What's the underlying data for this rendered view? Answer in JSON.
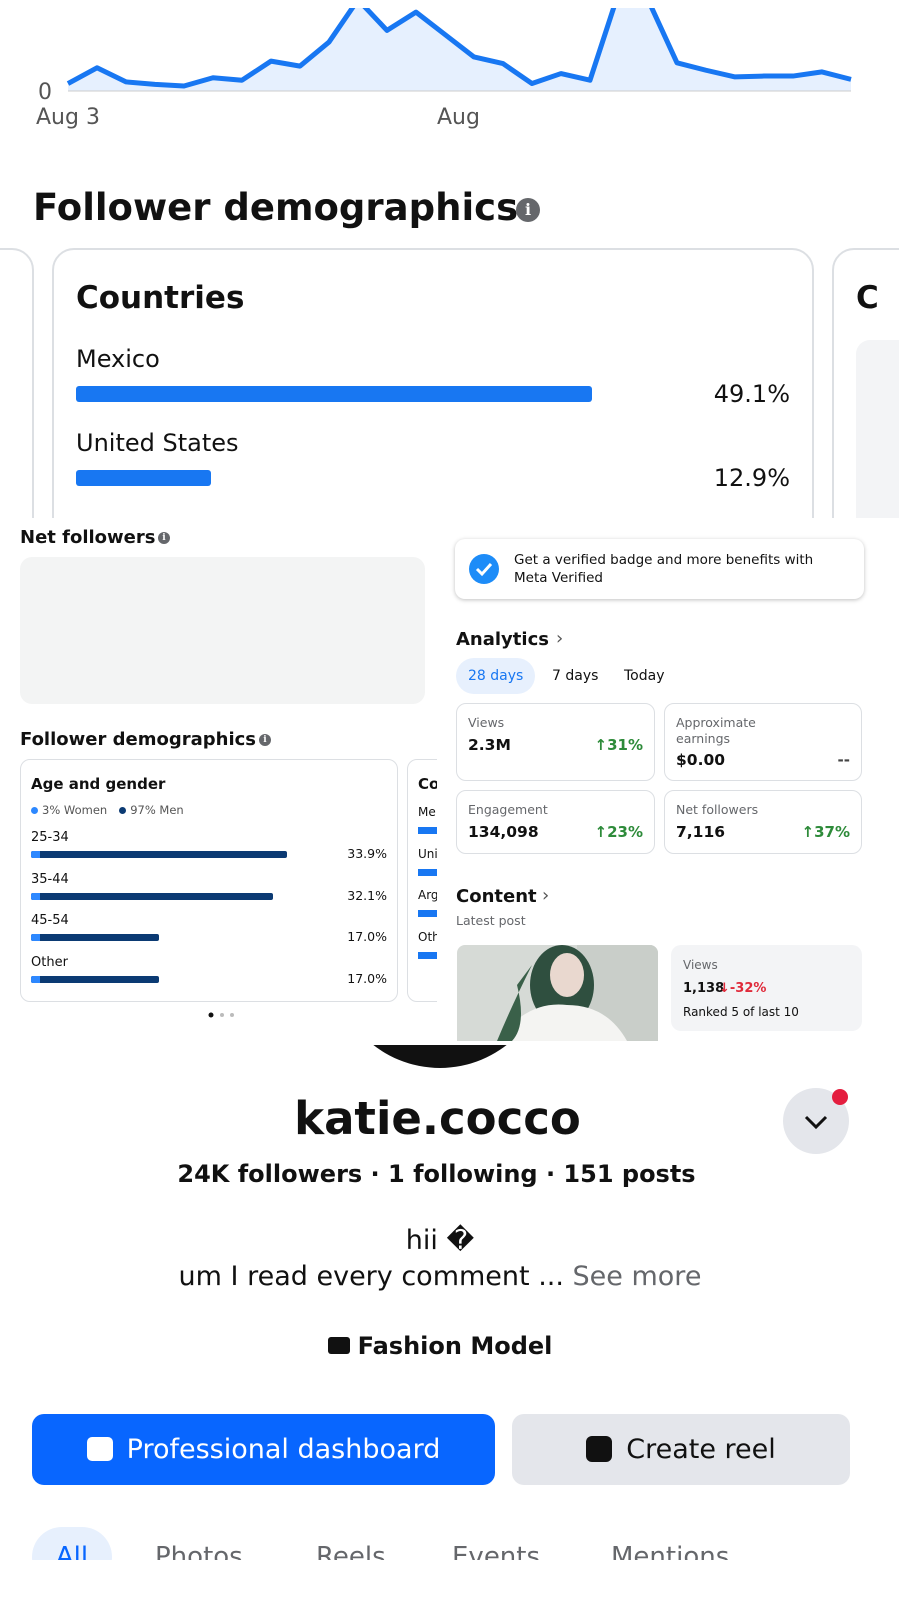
{
  "views_chart": {
    "type": "line",
    "values": [
      9,
      28,
      11,
      8,
      6,
      16,
      13,
      36,
      30,
      59,
      110,
      73,
      95,
      68,
      41,
      33,
      9,
      21,
      13,
      120,
      110,
      34,
      25,
      17,
      18,
      18,
      23,
      14
    ],
    "ylim": [
      0,
      100
    ],
    "yticks": [
      0
    ],
    "x_labels": [
      "Aug 3",
      "Aug"
    ],
    "color": "#1877f2"
  },
  "demographics_large": {
    "title": "Follower demographics",
    "card_title": "Countries",
    "rows": [
      {
        "label": "Mexico",
        "value": 49.1,
        "value_label": "49.1%"
      },
      {
        "label": "United States",
        "value": 12.9,
        "value_label": "12.9%"
      }
    ],
    "next_card_initial": "C"
  },
  "net_followers": {
    "title": "Net followers"
  },
  "demographics_small": {
    "title": "Follower demographics",
    "card_title": "Age and gender",
    "legend": [
      {
        "label": "3% Women",
        "color": "#2d88ff"
      },
      {
        "label": "97% Men",
        "color": "#0b3a73"
      }
    ],
    "rows": [
      {
        "label": "25-34",
        "value": 33.9,
        "value_label": "33.9%"
      },
      {
        "label": "35-44",
        "value": 32.1,
        "value_label": "32.1%"
      },
      {
        "label": "45-54",
        "value": 17.0,
        "value_label": "17.0%"
      },
      {
        "label": "Other",
        "value": 17.0,
        "value_label": "17.0%"
      }
    ],
    "next_card": {
      "title": "Co",
      "rows": [
        "Me",
        "Uni",
        "Arg",
        "Oth"
      ]
    }
  },
  "verified_banner": {
    "text": "Get a verified badge and more benefits with Meta Verified"
  },
  "analytics": {
    "title": "Analytics",
    "tabs": [
      "28 days",
      "7 days",
      "Today"
    ],
    "selected_tab": 0,
    "stats": [
      {
        "label": "Views",
        "value": "2.3M",
        "change": "↑31%",
        "direction": "up"
      },
      {
        "label": "Approximate earnings",
        "value": "$0.00",
        "change": "--",
        "direction": "none"
      },
      {
        "label": "Engagement",
        "value": "134,098",
        "change": "↑23%",
        "direction": "up"
      },
      {
        "label": "Net followers",
        "value": "7,116",
        "change": "↑37%",
        "direction": "up"
      }
    ]
  },
  "content": {
    "title": "Content",
    "subtitle": "Latest post",
    "views_label": "Views",
    "views": "1,138",
    "change": "↓-32%",
    "rank": "Ranked 5 of last 10"
  },
  "profile": {
    "name": "katie.cocco",
    "stats": "24K followers · 1 following · 151 posts",
    "bio_line1": "hii �",
    "bio_line2": "um I read every comment ...",
    "see_more": "See more",
    "category": "Fashion Model",
    "buttons": [
      "Professional dashboard",
      "Create reel"
    ],
    "tabs": [
      "All",
      "Photos",
      "Reels",
      "Events",
      "Mentions"
    ]
  }
}
